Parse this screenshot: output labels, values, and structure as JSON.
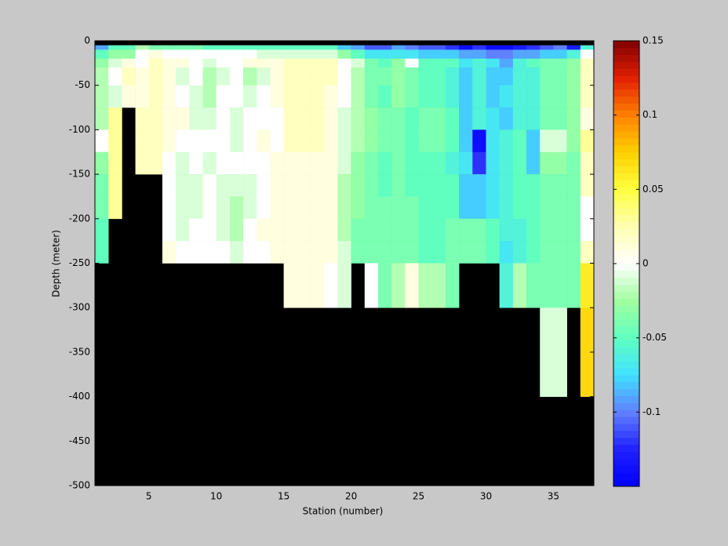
{
  "chart_data": {
    "type": "heatmap",
    "x_label": "Station (number)",
    "y_label": "Depth (meter)",
    "x": [
      1,
      2,
      3,
      4,
      5,
      6,
      7,
      8,
      9,
      10,
      11,
      12,
      13,
      14,
      15,
      16,
      17,
      18,
      19,
      20,
      21,
      22,
      23,
      24,
      25,
      26,
      27,
      28,
      29,
      30,
      31,
      32,
      33,
      34,
      35,
      36,
      37
    ],
    "y_edges": [
      0,
      -5,
      -10,
      -20,
      -30,
      -50,
      -75,
      -100,
      -125,
      -150,
      -175,
      -200,
      -225,
      -250,
      -300,
      -400,
      -500
    ],
    "xlim": [
      1,
      38
    ],
    "ylim": [
      -500,
      0
    ],
    "xticks": [
      5,
      10,
      15,
      20,
      25,
      30,
      35
    ],
    "yticks": [
      0,
      -50,
      -100,
      -150,
      -200,
      -250,
      -300,
      -350,
      -400,
      -450,
      -500
    ],
    "clim": [
      -0.15,
      0.15
    ],
    "cticks": [
      -0.1,
      -0.05,
      0,
      0.05,
      0.1,
      0.15
    ],
    "colormap": [
      "#0000ff",
      "#2020ff",
      "#6080ff",
      "#40e0ff",
      "#60ffc0",
      "#a0ffa0",
      "#ffffff",
      "#ffffb0",
      "#ffff40",
      "#ffd000",
      "#ff8000",
      "#e02000",
      "#800000"
    ],
    "missing_color": "#000000",
    "z": [
      [
        null,
        -0.09,
        -0.05,
        -0.03,
        -0.02,
        -0.02,
        -0.02,
        0,
        -0.03,
        -0.04,
        -0.04,
        -0.05,
        -0.05,
        null,
        null,
        null
      ],
      [
        null,
        -0.05,
        -0.03,
        -0.01,
        0,
        -0.01,
        0.03,
        0.03,
        0.03,
        0.03,
        0.03,
        null,
        null,
        null,
        null,
        null
      ],
      [
        null,
        -0.05,
        -0.03,
        0.01,
        0.02,
        0.01,
        null,
        null,
        null,
        null,
        null,
        null,
        null,
        null,
        null,
        null
      ],
      [
        null,
        -0.02,
        0,
        0,
        0.01,
        0.01,
        0.02,
        0.02,
        0.02,
        null,
        null,
        null,
        null,
        null,
        null,
        null
      ],
      [
        null,
        -0.04,
        0.01,
        0.02,
        0.02,
        0.02,
        0.02,
        0.02,
        0.02,
        null,
        null,
        null,
        null,
        null,
        null,
        null
      ],
      [
        null,
        -0.04,
        0,
        0.01,
        0.01,
        0.01,
        0.01,
        0.01,
        0,
        0,
        0,
        0,
        0.01,
        null,
        null,
        null
      ],
      [
        null,
        -0.04,
        0,
        0.01,
        -0.01,
        0,
        0.01,
        0,
        -0.01,
        -0.01,
        -0.01,
        -0.01,
        0,
        null,
        null,
        null
      ],
      [
        null,
        -0.04,
        0,
        0,
        0,
        -0.01,
        -0.01,
        0,
        0,
        -0.01,
        -0.01,
        0,
        0,
        null,
        null,
        null
      ],
      [
        null,
        -0.05,
        0,
        -0.01,
        -0.02,
        -0.02,
        -0.01,
        0,
        -0.01,
        0,
        0,
        0,
        0,
        null,
        null,
        null
      ],
      [
        null,
        -0.05,
        0,
        0,
        -0.01,
        0,
        0,
        0,
        0,
        -0.01,
        -0.01,
        -0.01,
        0,
        null,
        null,
        null
      ],
      [
        null,
        -0.05,
        0,
        0,
        0,
        0,
        -0.01,
        -0.01,
        0,
        -0.01,
        -0.02,
        -0.02,
        -0.01,
        null,
        null,
        null
      ],
      [
        null,
        -0.05,
        0,
        0.01,
        -0.02,
        -0.01,
        0,
        0,
        0,
        -0.01,
        -0.01,
        0,
        0,
        null,
        null,
        null
      ],
      [
        null,
        -0.05,
        -0.01,
        0.01,
        -0.01,
        0,
        0,
        0.01,
        0,
        0,
        0,
        0.01,
        0,
        null,
        null,
        null
      ],
      [
        null,
        -0.05,
        -0.01,
        0.01,
        0.01,
        0.01,
        0,
        0,
        0.01,
        0.01,
        0.01,
        0.01,
        0.01,
        null,
        null,
        null
      ],
      [
        null,
        -0.05,
        -0.01,
        0.02,
        0.02,
        0.02,
        0.02,
        0.02,
        0.01,
        0.01,
        0.01,
        0.01,
        0.01,
        0.01,
        null,
        null
      ],
      [
        null,
        -0.05,
        -0.01,
        0.02,
        0.02,
        0.02,
        0.02,
        0.02,
        0.01,
        0.01,
        0.01,
        0.01,
        0.01,
        0.01,
        null,
        null
      ],
      [
        null,
        -0.05,
        -0.01,
        0.02,
        0.02,
        0.02,
        0.02,
        0.02,
        0.01,
        0.01,
        0.01,
        0.01,
        0.01,
        0.01,
        null,
        null
      ],
      [
        null,
        -0.05,
        -0.01,
        0.02,
        0.02,
        0.01,
        0.01,
        0.01,
        0.01,
        0.01,
        0.01,
        0.01,
        0.01,
        0,
        null,
        null
      ],
      [
        null,
        -0.08,
        -0.03,
        0,
        0,
        0,
        -0.01,
        -0.01,
        -0.01,
        -0.02,
        -0.02,
        -0.02,
        -0.01,
        -0.01,
        null,
        null
      ],
      [
        null,
        -0.09,
        -0.05,
        -0.01,
        -0.02,
        -0.02,
        -0.02,
        -0.02,
        -0.03,
        -0.03,
        -0.03,
        -0.04,
        -0.04,
        null,
        null,
        null
      ],
      [
        null,
        -0.11,
        -0.07,
        -0.04,
        -0.04,
        -0.04,
        -0.03,
        -0.03,
        -0.04,
        -0.04,
        -0.04,
        -0.04,
        -0.04,
        0,
        null,
        null
      ],
      [
        null,
        -0.11,
        -0.07,
        -0.05,
        -0.04,
        -0.05,
        -0.04,
        -0.04,
        -0.05,
        -0.05,
        -0.04,
        -0.04,
        -0.04,
        -0.04,
        null,
        null
      ],
      [
        null,
        -0.09,
        -0.07,
        -0.03,
        -0.03,
        -0.03,
        -0.04,
        -0.04,
        -0.04,
        -0.04,
        -0.04,
        -0.04,
        -0.04,
        -0.02,
        null,
        null
      ],
      [
        null,
        -0.1,
        -0.07,
        0,
        -0.04,
        -0.04,
        -0.05,
        -0.05,
        -0.05,
        -0.05,
        -0.04,
        -0.04,
        -0.04,
        0.01,
        null,
        null
      ],
      [
        null,
        -0.11,
        -0.08,
        -0.05,
        -0.05,
        -0.05,
        -0.04,
        -0.04,
        -0.05,
        -0.05,
        -0.05,
        -0.05,
        -0.05,
        -0.02,
        null,
        null
      ],
      [
        null,
        -0.11,
        -0.08,
        -0.05,
        -0.05,
        -0.05,
        -0.04,
        -0.04,
        -0.05,
        -0.05,
        -0.05,
        -0.05,
        -0.05,
        -0.02,
        null,
        null
      ],
      [
        null,
        -0.12,
        -0.08,
        -0.05,
        -0.06,
        -0.06,
        -0.05,
        -0.05,
        -0.06,
        -0.05,
        -0.05,
        -0.04,
        -0.04,
        -0.04,
        null,
        null
      ],
      [
        null,
        -0.14,
        -0.09,
        -0.07,
        -0.08,
        -0.08,
        -0.08,
        -0.08,
        -0.07,
        -0.08,
        -0.08,
        -0.04,
        -0.04,
        null,
        null,
        null
      ],
      [
        null,
        -0.12,
        -0.09,
        -0.06,
        -0.06,
        -0.06,
        -0.06,
        -0.14,
        -0.12,
        -0.08,
        -0.08,
        -0.04,
        -0.04,
        null,
        null,
        null
      ],
      [
        null,
        -0.14,
        -0.1,
        -0.07,
        -0.08,
        -0.08,
        -0.07,
        -0.07,
        -0.07,
        -0.07,
        -0.07,
        -0.05,
        -0.05,
        null,
        null,
        null
      ],
      [
        null,
        -0.14,
        -0.1,
        -0.09,
        -0.08,
        -0.07,
        -0.08,
        -0.06,
        -0.06,
        -0.06,
        -0.06,
        -0.06,
        -0.07,
        -0.06,
        null,
        null
      ],
      [
        null,
        -0.13,
        -0.09,
        -0.06,
        -0.06,
        -0.06,
        -0.06,
        -0.05,
        -0.05,
        -0.05,
        -0.05,
        -0.06,
        -0.06,
        -0.02,
        null,
        null
      ],
      [
        null,
        -0.12,
        -0.09,
        -0.05,
        -0.06,
        -0.06,
        -0.06,
        -0.08,
        -0.08,
        -0.05,
        -0.05,
        -0.05,
        -0.05,
        -0.04,
        null,
        null
      ],
      [
        null,
        -0.11,
        -0.08,
        -0.04,
        -0.04,
        -0.04,
        -0.04,
        -0.01,
        -0.03,
        -0.04,
        -0.04,
        -0.04,
        -0.04,
        -0.04,
        -0.01,
        null
      ],
      [
        null,
        -0.1,
        -0.08,
        -0.04,
        -0.04,
        -0.04,
        -0.04,
        -0.01,
        -0.03,
        -0.04,
        -0.04,
        -0.04,
        -0.04,
        -0.04,
        -0.01,
        null
      ],
      [
        null,
        -0.13,
        -0.06,
        -0.03,
        -0.03,
        -0.03,
        -0.03,
        -0.03,
        -0.04,
        -0.04,
        -0.04,
        -0.04,
        -0.04,
        -0.04,
        null,
        null
      ],
      [
        null,
        -0.06,
        0,
        0.02,
        0.02,
        0.02,
        0.01,
        0.03,
        0.02,
        0.02,
        0,
        0,
        0.02,
        0.06,
        0.07,
        null
      ]
    ]
  }
}
